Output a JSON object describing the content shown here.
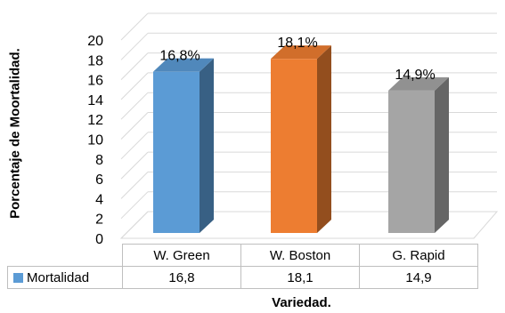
{
  "chart_data": {
    "type": "bar",
    "title": "",
    "ylabel": "Porcentaje de Moortalidad.",
    "xlabel": "Variedad.",
    "ylim": [
      0,
      20
    ],
    "yticks": [
      0,
      2,
      4,
      6,
      8,
      10,
      12,
      14,
      16,
      18,
      20
    ],
    "grid": true,
    "categories": [
      "W. Green",
      "W. Boston",
      "G. Rapid"
    ],
    "series": [
      {
        "name": "Mortalidad",
        "values": [
          16.8,
          18.1,
          14.9
        ]
      }
    ],
    "data_labels": [
      "16,8%",
      "18,1%",
      "14,9%"
    ],
    "table_values": [
      "16,8",
      "18,1",
      "14,9"
    ],
    "colors": [
      "#5b9bd5",
      "#ed7d31",
      "#a5a5a5"
    ],
    "legend_color": "#5b9bd5"
  }
}
